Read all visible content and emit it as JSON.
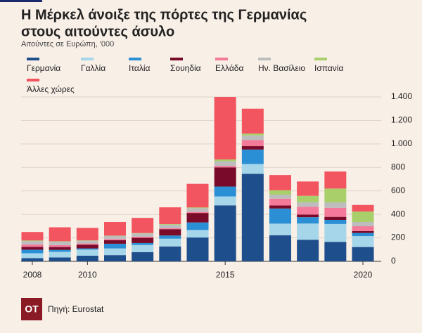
{
  "chart_data": {
    "type": "stacked_bar",
    "title": [
      "Η Μέρκελ άνοιξε της πόρτες της Γερμανίας",
      "στους αιτούντες άσυλο"
    ],
    "subtitle": "Αιτούντες σε Ευρώπη, '000",
    "categories": [
      "2008",
      null,
      "2010",
      null,
      null,
      null,
      null,
      "2015",
      null,
      null,
      null,
      null,
      "2020"
    ],
    "series": [
      {
        "name": "Γερμανία",
        "color": "#1f4e8c",
        "values": [
          27,
          33,
          48,
          53,
          78,
          127,
          203,
          477,
          745,
          222,
          184,
          166,
          122
        ]
      },
      {
        "name": "Γαλλία",
        "color": "#a6d6ea",
        "values": [
          42,
          48,
          52,
          57,
          61,
          66,
          64,
          76,
          84,
          99,
          138,
          152,
          93
        ]
      },
      {
        "name": "Ιταλία",
        "color": "#2a8fd4",
        "values": [
          30,
          17,
          10,
          40,
          17,
          27,
          64,
          84,
          123,
          129,
          54,
          35,
          27
        ]
      },
      {
        "name": "Σουηδία",
        "color": "#7a0a2a",
        "values": [
          24,
          24,
          32,
          30,
          44,
          54,
          81,
          163,
          29,
          26,
          22,
          26,
          16
        ]
      },
      {
        "name": "Ελλάδα",
        "color": "#f47a9a",
        "values": [
          20,
          16,
          10,
          10,
          10,
          8,
          9,
          13,
          51,
          58,
          67,
          77,
          41
        ]
      },
      {
        "name": "Ην. Βασίλειο",
        "color": "#bdbdbd",
        "values": [
          30,
          30,
          23,
          26,
          28,
          30,
          32,
          40,
          40,
          34,
          38,
          46,
          36
        ]
      },
      {
        "name": "Ισπανία",
        "color": "#a8cf6a",
        "values": [
          5,
          3,
          3,
          3,
          3,
          5,
          6,
          15,
          16,
          37,
          55,
          118,
          89
        ]
      },
      {
        "name": "Άλλες χώρες",
        "color": "#f25560",
        "values": [
          72,
          119,
          107,
          116,
          129,
          143,
          201,
          532,
          212,
          130,
          122,
          145,
          56
        ]
      }
    ],
    "ylim": [
      0,
      1400
    ],
    "yticks": [
      0,
      200,
      400,
      600,
      800,
      {
        "value": 1000,
        "label": "1.000"
      },
      {
        "value": 1200,
        "label": "1.200"
      },
      {
        "value": 1400,
        "label": "1.400"
      }
    ],
    "grid": true
  },
  "footer": {
    "logo": "OT",
    "source": "Πηγή: Eurostat"
  }
}
